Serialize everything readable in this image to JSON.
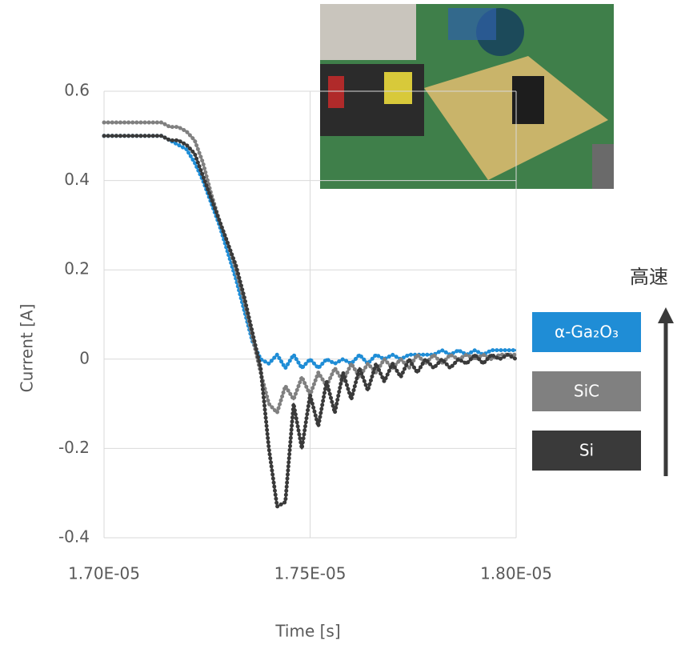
{
  "chart_data": {
    "type": "line",
    "x_label": "Time [s]",
    "y_label": "Current [A]",
    "annotation": "高速",
    "xlim": [
      1.7e-05,
      1.8e-05
    ],
    "xticks": [
      {
        "value": 1.7e-05,
        "label": "1.70E-05"
      },
      {
        "value": 1.75e-05,
        "label": "1.75E-05"
      },
      {
        "value": 1.8e-05,
        "label": "1.80E-05"
      }
    ],
    "ylim": [
      -0.4,
      0.6
    ],
    "yticks": [
      -0.4,
      -0.2,
      0,
      0.2,
      0.4,
      0.6
    ],
    "grid": true,
    "x": [
      1.7e-05,
      1.702e-05,
      1.704e-05,
      1.706e-05,
      1.708e-05,
      1.71e-05,
      1.712e-05,
      1.714e-05,
      1.716e-05,
      1.718e-05,
      1.72e-05,
      1.722e-05,
      1.724e-05,
      1.726e-05,
      1.728e-05,
      1.73e-05,
      1.732e-05,
      1.734e-05,
      1.736e-05,
      1.738e-05,
      1.74e-05,
      1.742e-05,
      1.744e-05,
      1.746e-05,
      1.748e-05,
      1.75e-05,
      1.752e-05,
      1.754e-05,
      1.756e-05,
      1.758e-05,
      1.76e-05,
      1.762e-05,
      1.764e-05,
      1.766e-05,
      1.768e-05,
      1.77e-05,
      1.772e-05,
      1.774e-05,
      1.776e-05,
      1.778e-05,
      1.78e-05,
      1.782e-05,
      1.784e-05,
      1.786e-05,
      1.788e-05,
      1.79e-05,
      1.792e-05,
      1.794e-05,
      1.796e-05,
      1.798e-05,
      1.8e-05
    ],
    "series": [
      {
        "name": "α-Ga₂O₃",
        "color": "#1f8dd6",
        "values": [
          0.5,
          0.5,
          0.5,
          0.5,
          0.5,
          0.5,
          0.5,
          0.5,
          0.49,
          0.48,
          0.47,
          0.44,
          0.4,
          0.35,
          0.3,
          0.24,
          0.18,
          0.11,
          0.04,
          0.0,
          -0.01,
          0.01,
          -0.02,
          0.01,
          -0.02,
          0.0,
          -0.02,
          0.0,
          -0.01,
          0.0,
          -0.01,
          0.01,
          -0.01,
          0.01,
          0.0,
          0.01,
          0.0,
          0.01,
          0.01,
          0.01,
          0.01,
          0.02,
          0.01,
          0.02,
          0.01,
          0.02,
          0.01,
          0.02,
          0.02,
          0.02,
          0.02
        ]
      },
      {
        "name": "SiC",
        "color": "#808080",
        "values": [
          0.53,
          0.53,
          0.53,
          0.53,
          0.53,
          0.53,
          0.53,
          0.53,
          0.52,
          0.52,
          0.51,
          0.49,
          0.44,
          0.37,
          0.31,
          0.26,
          0.2,
          0.13,
          0.05,
          -0.03,
          -0.1,
          -0.12,
          -0.06,
          -0.09,
          -0.04,
          -0.08,
          -0.03,
          -0.06,
          -0.02,
          -0.05,
          -0.01,
          -0.04,
          -0.01,
          -0.03,
          0.0,
          -0.02,
          0.0,
          -0.02,
          0.01,
          -0.01,
          0.01,
          -0.01,
          0.01,
          0.0,
          0.01,
          0.0,
          0.01,
          0.0,
          0.01,
          0.01,
          0.01
        ]
      },
      {
        "name": "Si",
        "color": "#3a3a3a",
        "values": [
          0.5,
          0.5,
          0.5,
          0.5,
          0.5,
          0.5,
          0.5,
          0.5,
          0.49,
          0.49,
          0.48,
          0.46,
          0.41,
          0.36,
          0.31,
          0.26,
          0.21,
          0.14,
          0.06,
          -0.02,
          -0.2,
          -0.33,
          -0.32,
          -0.1,
          -0.2,
          -0.08,
          -0.15,
          -0.05,
          -0.12,
          -0.03,
          -0.09,
          -0.02,
          -0.07,
          -0.01,
          -0.05,
          -0.01,
          -0.04,
          0.0,
          -0.03,
          0.0,
          -0.02,
          0.0,
          -0.02,
          0.0,
          -0.01,
          0.01,
          -0.01,
          0.01,
          0.0,
          0.01,
          0.0
        ]
      }
    ]
  }
}
